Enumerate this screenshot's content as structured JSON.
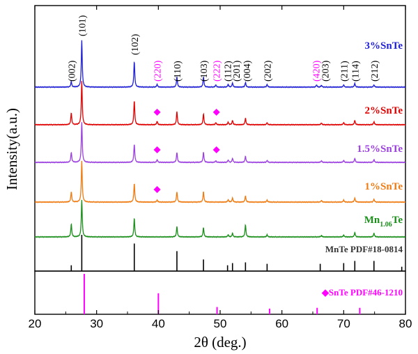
{
  "chart_data": {
    "type": "line",
    "xlabel": "2θ (deg.)",
    "ylabel": "Intensity(a.u.)",
    "xlim": [
      20,
      80
    ],
    "x_ticks": [
      20,
      30,
      40,
      50,
      60,
      70,
      80
    ],
    "series": [
      {
        "name": "3%SnTe",
        "color": "#1f1fd6",
        "peaks": [
          [
            25.9,
            0.12
          ],
          [
            27.6,
            1.0
          ],
          [
            36.1,
            0.55
          ],
          [
            39.8,
            0.06
          ],
          [
            43.0,
            0.22
          ],
          [
            47.3,
            0.22
          ],
          [
            49.3,
            0.05
          ],
          [
            51.3,
            0.06
          ],
          [
            52.0,
            0.09
          ],
          [
            54.1,
            0.1
          ],
          [
            57.6,
            0.06
          ],
          [
            65.6,
            0.05
          ],
          [
            66.4,
            0.04
          ],
          [
            70.0,
            0.05
          ],
          [
            71.8,
            0.08
          ],
          [
            74.9,
            0.05
          ]
        ]
      },
      {
        "name": "2%SnTe",
        "color": "#e00000",
        "peaks": [
          [
            25.9,
            0.27
          ],
          [
            27.6,
            1.0
          ],
          [
            36.1,
            0.55
          ],
          [
            39.8,
            0.08
          ],
          [
            43.0,
            0.3
          ],
          [
            47.3,
            0.25
          ],
          [
            49.3,
            0.05
          ],
          [
            51.3,
            0.06
          ],
          [
            52.0,
            0.1
          ],
          [
            54.1,
            0.15
          ],
          [
            57.6,
            0.05
          ],
          [
            66.4,
            0.04
          ],
          [
            70.0,
            0.05
          ],
          [
            71.8,
            0.1
          ],
          [
            74.9,
            0.07
          ]
        ]
      },
      {
        "name": "1.5%SnTe",
        "color": "#9b3fe0",
        "peaks": [
          [
            25.9,
            0.25
          ],
          [
            27.6,
            1.0
          ],
          [
            36.1,
            0.45
          ],
          [
            39.8,
            0.07
          ],
          [
            43.0,
            0.25
          ],
          [
            47.3,
            0.25
          ],
          [
            49.3,
            0.04
          ],
          [
            51.3,
            0.06
          ],
          [
            52.0,
            0.1
          ],
          [
            54.1,
            0.15
          ],
          [
            57.6,
            0.05
          ],
          [
            66.4,
            0.04
          ],
          [
            70.0,
            0.05
          ],
          [
            71.8,
            0.1
          ],
          [
            74.9,
            0.07
          ]
        ]
      },
      {
        "name": "1%SnTe",
        "color": "#f07a10",
        "peaks": [
          [
            25.9,
            0.25
          ],
          [
            27.6,
            1.0
          ],
          [
            36.1,
            0.45
          ],
          [
            39.8,
            0.05
          ],
          [
            43.0,
            0.25
          ],
          [
            47.3,
            0.25
          ],
          [
            51.3,
            0.06
          ],
          [
            52.0,
            0.1
          ],
          [
            54.1,
            0.15
          ],
          [
            57.6,
            0.05
          ],
          [
            66.4,
            0.04
          ],
          [
            70.0,
            0.05
          ],
          [
            71.8,
            0.1
          ],
          [
            74.9,
            0.07
          ]
        ]
      },
      {
        "name_main": "Mn",
        "name_sub": "1.06",
        "name_tail": "Te",
        "color": "#1a8f1a",
        "peaks": [
          [
            25.9,
            0.35
          ],
          [
            27.6,
            1.0
          ],
          [
            36.1,
            0.5
          ],
          [
            43.0,
            0.28
          ],
          [
            47.3,
            0.25
          ],
          [
            51.3,
            0.06
          ],
          [
            52.0,
            0.1
          ],
          [
            54.1,
            0.33
          ],
          [
            57.6,
            0.06
          ],
          [
            66.4,
            0.04
          ],
          [
            70.0,
            0.05
          ],
          [
            71.8,
            0.12
          ],
          [
            74.9,
            0.1
          ]
        ]
      }
    ],
    "peak_labels": [
      {
        "x": 25.9,
        "text": "(002)"
      },
      {
        "x": 27.6,
        "text": "(101)"
      },
      {
        "x": 36.1,
        "text": "(102)"
      },
      {
        "x": 39.8,
        "text": "(220)",
        "phase": "SnTe"
      },
      {
        "x": 43.0,
        "text": "(110)"
      },
      {
        "x": 47.3,
        "text": "(103)"
      },
      {
        "x": 49.4,
        "text": "(222)",
        "phase": "SnTe"
      },
      {
        "x": 51.2,
        "text": "(112)"
      },
      {
        "x": 52.6,
        "text": "(201)"
      },
      {
        "x": 54.3,
        "text": "(004)"
      },
      {
        "x": 57.6,
        "text": "(202)"
      },
      {
        "x": 65.5,
        "text": "(420)",
        "phase": "SnTe"
      },
      {
        "x": 67.0,
        "text": "(203)"
      },
      {
        "x": 70.0,
        "text": "(211)"
      },
      {
        "x": 71.8,
        "text": "(114)"
      },
      {
        "x": 74.9,
        "text": "(212)"
      }
    ],
    "snte_markers": [
      {
        "series": 1,
        "x": [
          39.8,
          49.4
        ]
      },
      {
        "series": 2,
        "x": [
          39.8,
          49.4
        ]
      },
      {
        "series": 3,
        "x": [
          39.8
        ]
      }
    ],
    "reference_mnte": {
      "label": "MnTe PDF#18-0814",
      "color": "#000000",
      "lines": [
        [
          25.9,
          0.16
        ],
        [
          27.6,
          1.0
        ],
        [
          36.1,
          0.76
        ],
        [
          43.0,
          0.55
        ],
        [
          47.3,
          0.32
        ],
        [
          51.2,
          0.16
        ],
        [
          52.0,
          0.22
        ],
        [
          54.1,
          0.24
        ],
        [
          57.6,
          0.2
        ],
        [
          66.2,
          0.2
        ],
        [
          70.0,
          0.22
        ],
        [
          71.8,
          0.28
        ],
        [
          74.9,
          0.28
        ],
        [
          79.4,
          0.12
        ]
      ]
    },
    "reference_snte": {
      "label": "◆SnTe PDF#46-1210",
      "color": "#ff00ff",
      "lines": [
        [
          28.0,
          1.0
        ],
        [
          40.0,
          0.52
        ],
        [
          49.5,
          0.18
        ],
        [
          58.0,
          0.14
        ],
        [
          65.7,
          0.16
        ],
        [
          72.6,
          0.16
        ]
      ]
    },
    "grid": false
  }
}
